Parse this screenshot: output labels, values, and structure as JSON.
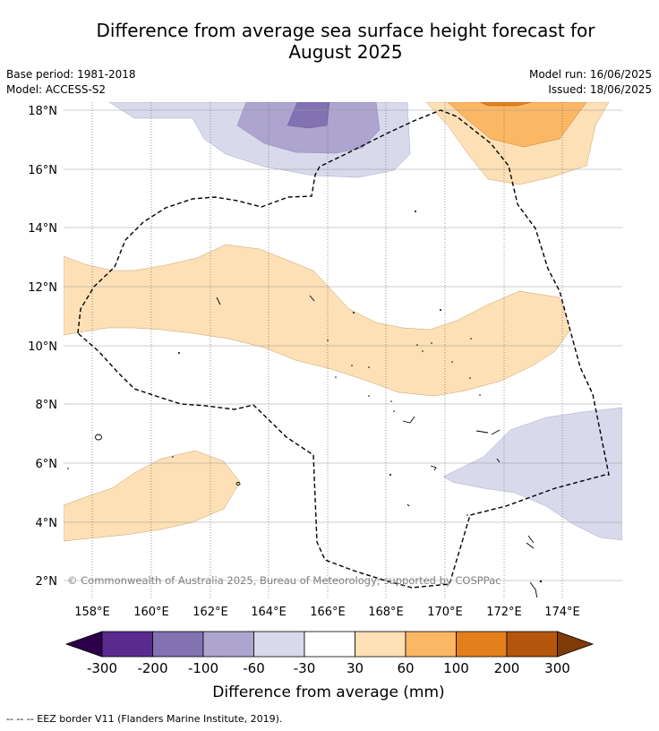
{
  "title": {
    "line1": "Difference from average sea surface height forecast for",
    "line2": "August 2025"
  },
  "meta": {
    "base_period": "Base period: 1981-2018",
    "model": "Model: ACCESS-S2",
    "model_run": "Model run: 16/06/2025",
    "issued": "Issued: 18/06/2025"
  },
  "map": {
    "lat_labels": [
      "18°N",
      "16°N",
      "14°N",
      "12°N",
      "10°N",
      "8°N",
      "6°N",
      "4°N",
      "2°N"
    ],
    "lon_labels": [
      "158°E",
      "160°E",
      "162°E",
      "164°E",
      "166°E",
      "168°E",
      "170°E",
      "172°E",
      "174°E"
    ],
    "copyright": "© Commonwealth of Australia 2025, Bureau of Meteorology; supported by COSPPac"
  },
  "colorbar": {
    "colors": [
      "#5b2a8e",
      "#8272b2",
      "#ada5d0",
      "#d8d9eb",
      "#ffffff",
      "#fde0b6",
      "#fbb764",
      "#e3801c",
      "#b4560b"
    ],
    "low_color": "#2d004b",
    "high_color": "#7f3b08",
    "tick_labels": [
      "-300",
      "-200",
      "-100",
      "-60",
      "-30",
      "30",
      "60",
      "100",
      "200",
      "300"
    ],
    "label": "Difference from average (mm)"
  },
  "footer": "-- -- -- EEZ border V11 (Flanders Marine Institute, 2019)."
}
